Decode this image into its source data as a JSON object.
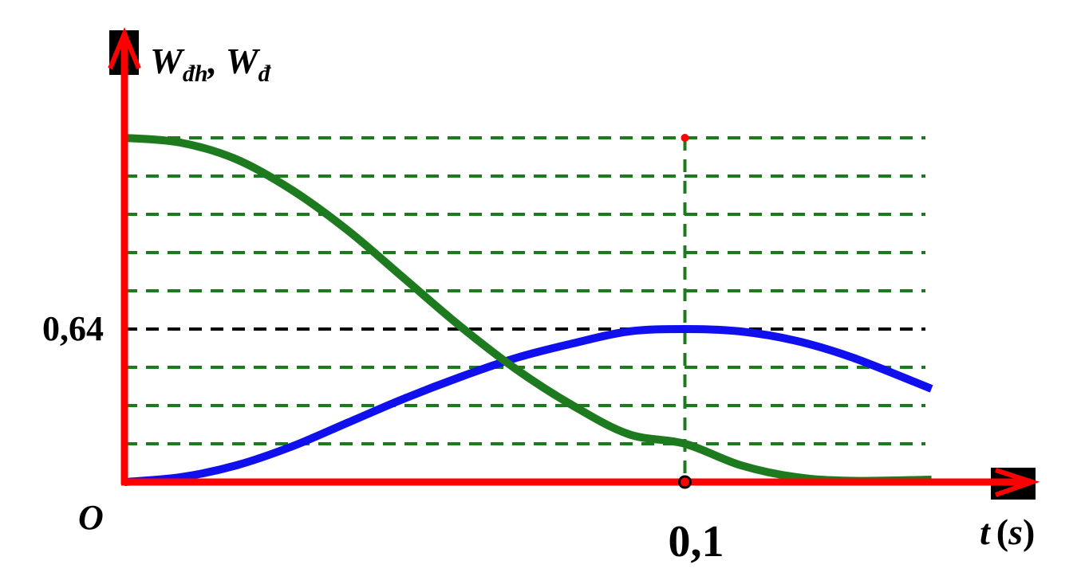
{
  "chart_data": {
    "type": "line",
    "title": "",
    "ylabel": "W",
    "ylabel_sub1": "đh",
    "ylabel_sep": ", ",
    "ylabel_sub2": "đ",
    "xlabel_var": "t",
    "xlabel_unit_open": "(",
    "xlabel_unit": "s",
    "xlabel_unit_close": ")",
    "origin_label": "O",
    "xlim": [
      0,
      0.2
    ],
    "ylim": [
      0,
      1.6
    ],
    "x_ticks": [
      {
        "value": 0.1,
        "label": "0,1"
      }
    ],
    "y_ticks": [
      {
        "value": 0.64,
        "label": "0,64"
      }
    ],
    "grid_y": [
      0.16,
      0.32,
      0.48,
      0.64,
      0.8,
      0.96,
      1.12,
      1.28,
      1.44
    ],
    "highlight_y": 0.64,
    "marker_x": 0.1,
    "series": [
      {
        "color": "#1010ee",
        "x": [
          0,
          0.01,
          0.02,
          0.03,
          0.04,
          0.05,
          0.06,
          0.07,
          0.08,
          0.09,
          0.1,
          0.11,
          0.12,
          0.13,
          0.144
        ],
        "values": [
          0,
          0.02,
          0.07,
          0.15,
          0.25,
          0.35,
          0.44,
          0.52,
          0.58,
          0.63,
          0.64,
          0.63,
          0.59,
          0.52,
          0.39
        ]
      },
      {
        "color": "#1e7a1e",
        "x": [
          0,
          0.01,
          0.02,
          0.03,
          0.04,
          0.05,
          0.06,
          0.07,
          0.08,
          0.09,
          0.1,
          0.11,
          0.12,
          0.13,
          0.144
        ],
        "values": [
          1.44,
          1.42,
          1.35,
          1.22,
          1.05,
          0.85,
          0.65,
          0.47,
          0.32,
          0.2,
          0.16,
          0.07,
          0.02,
          0.005,
          0.01
        ]
      }
    ],
    "colors": {
      "axis": "#ff0000",
      "grid": "#1e7a1e",
      "highlight": "#000000",
      "marker": "#ff0000"
    }
  }
}
